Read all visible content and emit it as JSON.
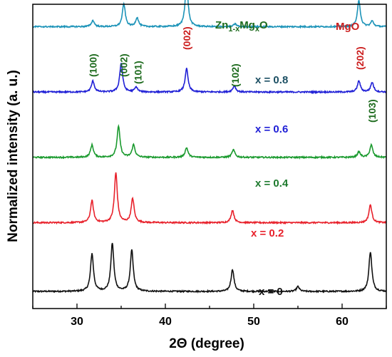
{
  "chart_data": {
    "type": "line",
    "xlabel": "2Θ (degree)",
    "ylabel": "Normalized intensity (a. u.)",
    "xlim": [
      25,
      65
    ],
    "xticks": [
      30,
      40,
      50,
      60
    ],
    "y_ticks_shown": false,
    "grid": false,
    "legend": "none",
    "series": [
      {
        "name": "x = 0",
        "color": "#111111",
        "label_color": "#111111",
        "offset": 0.0,
        "peaks": [
          [
            31.7,
            0.55
          ],
          [
            34.0,
            0.7
          ],
          [
            36.2,
            0.6
          ],
          [
            47.6,
            0.32
          ],
          [
            55.0,
            0.07
          ],
          [
            63.2,
            0.58
          ]
        ]
      },
      {
        "name": "x = 0.2",
        "color": "#e8212b",
        "label_color": "#e8212b",
        "offset": 1.0,
        "peaks": [
          [
            31.7,
            0.32
          ],
          [
            34.4,
            0.72
          ],
          [
            36.3,
            0.35
          ],
          [
            47.6,
            0.18
          ],
          [
            63.2,
            0.26
          ]
        ]
      },
      {
        "name": "x = 0.4",
        "color": "#1a9a2e",
        "label_color": "#1e7a2e",
        "offset": 1.95,
        "peaks": [
          [
            31.7,
            0.18
          ],
          [
            34.7,
            0.45
          ],
          [
            36.4,
            0.18
          ],
          [
            42.4,
            0.14
          ],
          [
            47.7,
            0.11
          ],
          [
            61.9,
            0.08
          ],
          [
            63.3,
            0.18
          ]
        ]
      },
      {
        "name": "x = 0.6",
        "color": "#1f1fd6",
        "label_color": "#1f1fd6",
        "offset": 2.9,
        "peaks": [
          [
            31.8,
            0.16
          ],
          [
            35.0,
            0.42
          ],
          [
            36.7,
            0.07
          ],
          [
            42.4,
            0.34
          ],
          [
            47.8,
            0.09
          ],
          [
            61.9,
            0.16
          ],
          [
            63.4,
            0.14
          ]
        ]
      },
      {
        "name": "x = 0.8",
        "color": "#1c93b8",
        "label_color": "#1c4f63",
        "offset": 3.85,
        "peaks": [
          [
            31.8,
            0.09
          ],
          [
            35.3,
            0.33
          ],
          [
            36.8,
            0.13
          ],
          [
            42.4,
            0.65
          ],
          [
            47.9,
            0.04
          ],
          [
            61.9,
            0.38
          ],
          [
            63.4,
            0.08
          ]
        ]
      }
    ],
    "annotations": {
      "phase_zn": {
        "prefix": "Zn",
        "sub1": "1-x",
        "mid": "Mg",
        "sub2": "x",
        "suffix": "O",
        "color": "#1e6b1e"
      },
      "phase_mgo": {
        "text": "MgO",
        "color": "#cc1f1f"
      },
      "hkl": [
        {
          "text": "(100)",
          "x": 31.8,
          "color": "#1e6b1e"
        },
        {
          "text": "(002)",
          "x": 35.3,
          "color": "#1e6b1e"
        },
        {
          "text": "(101)",
          "x": 36.9,
          "color": "#1e6b1e"
        },
        {
          "text": "(002)",
          "x": 42.4,
          "color": "#cc1f1f"
        },
        {
          "text": "(102)",
          "x": 47.9,
          "color": "#1e6b1e"
        },
        {
          "text": "(202)",
          "x": 62.0,
          "color": "#cc1f1f"
        },
        {
          "text": "(103)",
          "x": 63.4,
          "color": "#1e6b1e"
        }
      ]
    }
  }
}
